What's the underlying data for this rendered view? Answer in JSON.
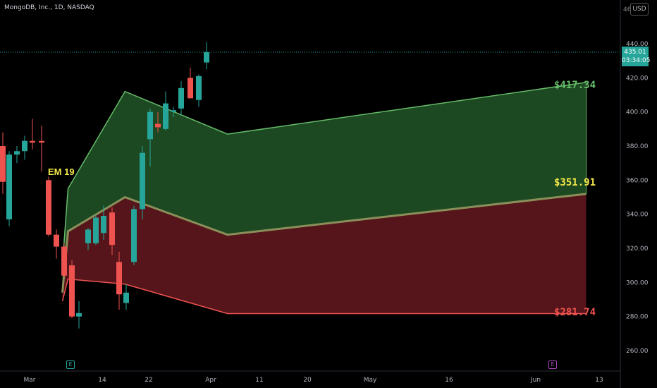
{
  "header": {
    "symbol_title": "MongoDB, Inc., 1D, NASDAQ",
    "currency": "USD"
  },
  "price_tag": {
    "price": "435.01",
    "countdown": "03:34:05",
    "color": "#26a69a"
  },
  "corner_tick": "46",
  "em_label": "EM 19",
  "levels": {
    "upper": {
      "label": "$417.34",
      "value": 417.34,
      "color": "#66bb6a"
    },
    "mid": {
      "label": "$351.91",
      "value": 351.91,
      "color": "#f5e94a"
    },
    "lower": {
      "label": "$281.74",
      "value": 281.74,
      "color": "#ef5350"
    }
  },
  "events": {
    "earnings_label": "E",
    "dividend_label": "E"
  },
  "chart_data": {
    "type": "candlestick",
    "y_ticks": [
      "440.00",
      "420.00",
      "400.00",
      "380.00",
      "360.00",
      "340.00",
      "320.00",
      "300.00",
      "280.00",
      "260.00"
    ],
    "x_ticks": [
      "Mar",
      "14",
      "22",
      "Apr",
      "11",
      "20",
      "May",
      "16",
      "Jun",
      "13"
    ],
    "ylim": [
      247,
      460
    ],
    "current_price": 435.01,
    "candles": [
      {
        "o": 380,
        "h": 388,
        "l": 352,
        "c": 359
      },
      {
        "o": 337,
        "h": 377,
        "l": 333,
        "c": 375
      },
      {
        "o": 375,
        "h": 380,
        "l": 370,
        "c": 377
      },
      {
        "o": 377,
        "h": 386,
        "l": 372,
        "c": 383
      },
      {
        "o": 383,
        "h": 396,
        "l": 378,
        "c": 382
      },
      {
        "o": 383,
        "h": 392,
        "l": 365,
        "c": 382
      },
      {
        "o": 360,
        "h": 362,
        "l": 327,
        "c": 328
      },
      {
        "o": 328,
        "h": 331,
        "l": 314,
        "c": 321
      },
      {
        "o": 321,
        "h": 323,
        "l": 303,
        "c": 304
      },
      {
        "o": 310,
        "h": 313,
        "l": 279,
        "c": 280
      },
      {
        "o": 280,
        "h": 289,
        "l": 273,
        "c": 282
      },
      {
        "o": 323,
        "h": 332,
        "l": 319,
        "c": 331
      },
      {
        "o": 323,
        "h": 340,
        "l": 322,
        "c": 338
      },
      {
        "o": 329,
        "h": 345,
        "l": 325,
        "c": 339
      },
      {
        "o": 341,
        "h": 344,
        "l": 316,
        "c": 322
      },
      {
        "o": 312,
        "h": 318,
        "l": 284,
        "c": 293
      },
      {
        "o": 288,
        "h": 299,
        "l": 284,
        "c": 294
      },
      {
        "o": 312,
        "h": 345,
        "l": 310,
        "c": 343
      },
      {
        "o": 343,
        "h": 380,
        "l": 337,
        "c": 376
      },
      {
        "o": 384,
        "h": 402,
        "l": 368,
        "c": 400
      },
      {
        "o": 393,
        "h": 400,
        "l": 388,
        "c": 391
      },
      {
        "o": 390,
        "h": 412,
        "l": 389,
        "c": 405
      },
      {
        "o": 400,
        "h": 403,
        "l": 397,
        "c": 401
      },
      {
        "o": 402,
        "h": 418,
        "l": 398,
        "c": 414
      },
      {
        "o": 420,
        "h": 426,
        "l": 408,
        "c": 408
      },
      {
        "o": 407,
        "h": 422,
        "l": 403,
        "c": 421
      },
      {
        "o": 429,
        "h": 441,
        "l": 425,
        "c": 435
      }
    ],
    "upper_band": [
      {
        "x": "Mar 7",
        "y": 310
      },
      {
        "x": "Mar 8",
        "y": 355
      },
      {
        "x": "Mar 18",
        "y": 412
      },
      {
        "x": "Apr 5",
        "y": 387
      },
      {
        "x": "Jun 7",
        "y": 417.34
      }
    ],
    "mid_band": [
      {
        "x": "Mar 7",
        "y": 294
      },
      {
        "x": "Mar 8",
        "y": 330
      },
      {
        "x": "Mar 18",
        "y": 350
      },
      {
        "x": "Apr 5",
        "y": 328
      },
      {
        "x": "Jun 7",
        "y": 351.91
      }
    ],
    "lower_band": [
      {
        "x": "Mar 7",
        "y": 289
      },
      {
        "x": "Mar 8",
        "y": 302
      },
      {
        "x": "Mar 18",
        "y": 299
      },
      {
        "x": "Apr 5",
        "y": 281.74
      },
      {
        "x": "Jun 7",
        "y": 281.74
      }
    ],
    "colors": {
      "up": "#26a69a",
      "down": "#ef5350",
      "upper_fill": "#1e4d23",
      "lower_fill": "#5a161b"
    }
  }
}
